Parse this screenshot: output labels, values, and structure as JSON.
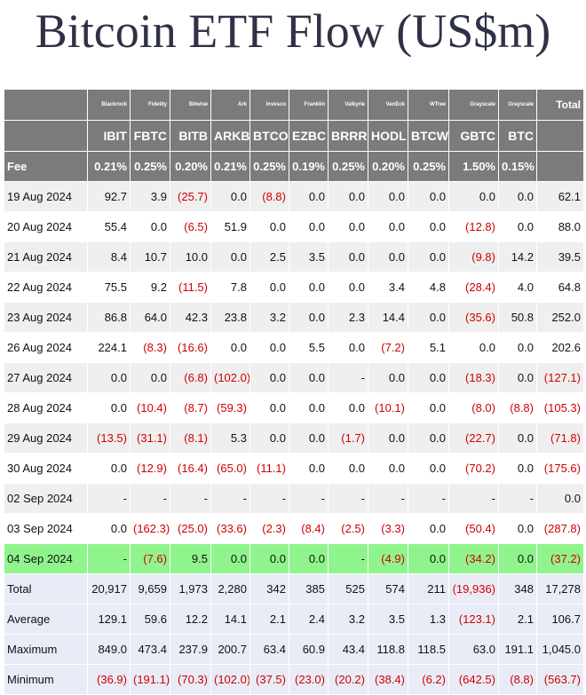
{
  "title": "Bitcoin ETF Flow (US$m)",
  "columns": [
    {
      "issuer": "Blackrock",
      "ticker": "IBIT",
      "fee": "0.21%"
    },
    {
      "issuer": "Fidelity",
      "ticker": "FBTC",
      "fee": "0.25%"
    },
    {
      "issuer": "Bitwise",
      "ticker": "BITB",
      "fee": "0.20%"
    },
    {
      "issuer": "Ark",
      "ticker": "ARKB",
      "fee": "0.21%"
    },
    {
      "issuer": "Invesco",
      "ticker": "BTCO",
      "fee": "0.25%"
    },
    {
      "issuer": "Franklin",
      "ticker": "EZBC",
      "fee": "0.19%"
    },
    {
      "issuer": "Valkyrie",
      "ticker": "BRRR",
      "fee": "0.25%"
    },
    {
      "issuer": "VanEck",
      "ticker": "HODL",
      "fee": "0.20%"
    },
    {
      "issuer": "WTree",
      "ticker": "BTCW",
      "fee": "0.25%"
    },
    {
      "issuer": "Grayscale",
      "ticker": "GBTC",
      "fee": "1.50%"
    },
    {
      "issuer": "Grayscale",
      "ticker": "BTC",
      "fee": "0.15%"
    }
  ],
  "total_label": "Total",
  "fee_label": "Fee",
  "rows": [
    {
      "date": "19 Aug 2024",
      "values": [
        "92.7",
        "3.9",
        "(25.7)",
        "0.0",
        "(8.8)",
        "0.0",
        "0.0",
        "0.0",
        "0.0",
        "0.0",
        "0.0"
      ],
      "total": "62.1"
    },
    {
      "date": "20 Aug 2024",
      "values": [
        "55.4",
        "0.0",
        "(6.5)",
        "51.9",
        "0.0",
        "0.0",
        "0.0",
        "0.0",
        "0.0",
        "(12.8)",
        "0.0"
      ],
      "total": "88.0"
    },
    {
      "date": "21 Aug 2024",
      "values": [
        "8.4",
        "10.7",
        "10.0",
        "0.0",
        "2.5",
        "3.5",
        "0.0",
        "0.0",
        "0.0",
        "(9.8)",
        "14.2"
      ],
      "total": "39.5"
    },
    {
      "date": "22 Aug 2024",
      "values": [
        "75.5",
        "9.2",
        "(11.5)",
        "7.8",
        "0.0",
        "0.0",
        "0.0",
        "3.4",
        "4.8",
        "(28.4)",
        "4.0"
      ],
      "total": "64.8"
    },
    {
      "date": "23 Aug 2024",
      "values": [
        "86.8",
        "64.0",
        "42.3",
        "23.8",
        "3.2",
        "0.0",
        "2.3",
        "14.4",
        "0.0",
        "(35.6)",
        "50.8"
      ],
      "total": "252.0"
    },
    {
      "date": "26 Aug 2024",
      "values": [
        "224.1",
        "(8.3)",
        "(16.6)",
        "0.0",
        "0.0",
        "5.5",
        "0.0",
        "(7.2)",
        "5.1",
        "0.0",
        "0.0"
      ],
      "total": "202.6"
    },
    {
      "date": "27 Aug 2024",
      "values": [
        "0.0",
        "0.0",
        "(6.8)",
        "(102.0)",
        "0.0",
        "0.0",
        "-",
        "0.0",
        "0.0",
        "(18.3)",
        "0.0"
      ],
      "total": "(127.1)"
    },
    {
      "date": "28 Aug 2024",
      "values": [
        "0.0",
        "(10.4)",
        "(8.7)",
        "(59.3)",
        "0.0",
        "0.0",
        "0.0",
        "(10.1)",
        "0.0",
        "(8.0)",
        "(8.8)"
      ],
      "total": "(105.3)"
    },
    {
      "date": "29 Aug 2024",
      "values": [
        "(13.5)",
        "(31.1)",
        "(8.1)",
        "5.3",
        "0.0",
        "0.0",
        "(1.7)",
        "0.0",
        "0.0",
        "(22.7)",
        "0.0"
      ],
      "total": "(71.8)"
    },
    {
      "date": "30 Aug 2024",
      "values": [
        "0.0",
        "(12.9)",
        "(16.4)",
        "(65.0)",
        "(11.1)",
        "0.0",
        "0.0",
        "0.0",
        "0.0",
        "(70.2)",
        "0.0"
      ],
      "total": "(175.6)"
    },
    {
      "date": "02 Sep 2024",
      "values": [
        "-",
        "-",
        "-",
        "-",
        "-",
        "-",
        "-",
        "-",
        "-",
        "-",
        "-"
      ],
      "total": "0.0"
    },
    {
      "date": "03 Sep 2024",
      "values": [
        "0.0",
        "(162.3)",
        "(25.0)",
        "(33.6)",
        "(2.3)",
        "(8.4)",
        "(2.5)",
        "(3.3)",
        "0.0",
        "(50.4)",
        "0.0"
      ],
      "total": "(287.8)"
    },
    {
      "date": "04 Sep 2024",
      "values": [
        "-",
        "(7.6)",
        "9.5",
        "0.0",
        "0.0",
        "0.0",
        "-",
        "(4.9)",
        "0.0",
        "(34.2)",
        "0.0"
      ],
      "total": "(37.2)",
      "highlight": true
    }
  ],
  "summary": [
    {
      "label": "Total",
      "values": [
        "20,917",
        "9,659",
        "1,973",
        "2,280",
        "342",
        "385",
        "525",
        "574",
        "211",
        "(19,936)",
        "348"
      ],
      "total": "17,278"
    },
    {
      "label": "Average",
      "values": [
        "129.1",
        "59.6",
        "12.2",
        "14.1",
        "2.1",
        "2.4",
        "3.2",
        "3.5",
        "1.3",
        "(123.1)",
        "2.1"
      ],
      "total": "106.7"
    },
    {
      "label": "Maximum",
      "values": [
        "849.0",
        "473.4",
        "237.9",
        "200.7",
        "63.4",
        "60.9",
        "43.4",
        "118.8",
        "118.5",
        "63.0",
        "191.1"
      ],
      "total": "1,045.0"
    },
    {
      "label": "Minimum",
      "values": [
        "(36.9)",
        "(191.1)",
        "(70.3)",
        "(102.0)",
        "(37.5)",
        "(23.0)",
        "(20.2)",
        "(38.4)",
        "(6.2)",
        "(642.5)",
        "(8.8)"
      ],
      "total": "(563.7)"
    }
  ],
  "colors": {
    "header_bg": "#7b7b7b",
    "negative": "#d00000",
    "highlight": "#90f48c",
    "summary_bg": "#e9ecf7"
  }
}
